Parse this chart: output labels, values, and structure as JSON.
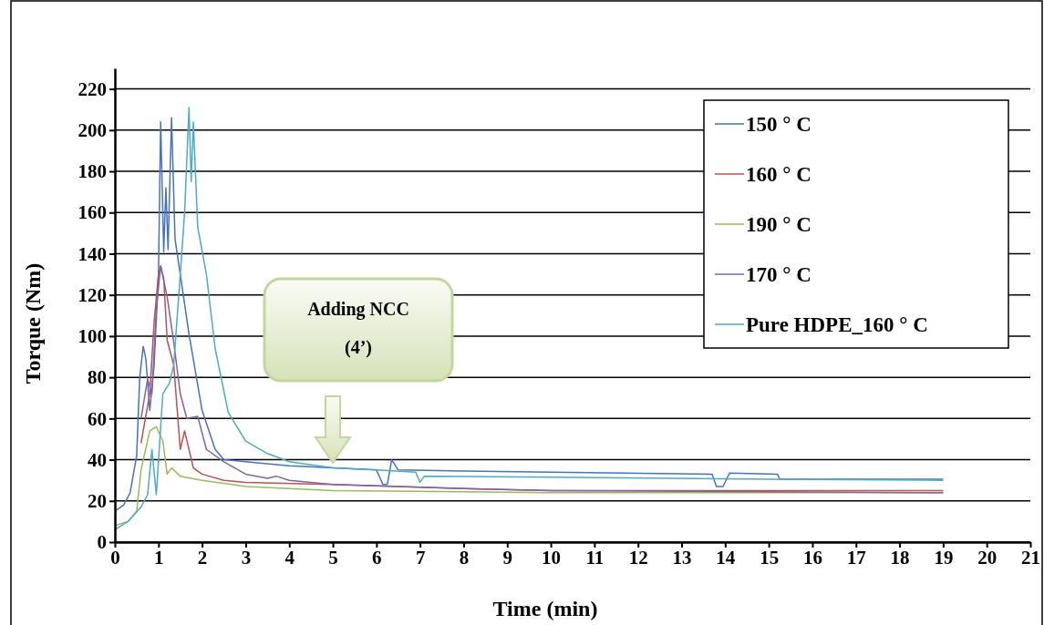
{
  "chart_data": {
    "type": "line",
    "xlabel": "Time (min)",
    "ylabel": "Torque (Nm)",
    "xlim": [
      0,
      21
    ],
    "xticks": [
      0,
      1,
      2,
      3,
      4,
      5,
      6,
      7,
      8,
      9,
      10,
      11,
      12,
      13,
      14,
      15,
      16,
      17,
      18,
      19,
      20,
      21
    ],
    "ylim": [
      0,
      230
    ],
    "yticks": [
      0,
      20,
      40,
      60,
      80,
      100,
      120,
      140,
      160,
      180,
      200,
      220
    ],
    "grid": "y",
    "legend": "top right",
    "marker": "none",
    "line_style": "solid",
    "annotations": [
      "Adding NCC\n(4’)"
    ],
    "series": [
      {
        "name": "150 ° C",
        "color": "#4472c4",
        "x": [
          0,
          0.2,
          0.35,
          0.5,
          0.57,
          0.65,
          0.71,
          0.8,
          0.9,
          1.0,
          1.05,
          1.12,
          1.17,
          1.22,
          1.3,
          1.38,
          1.5,
          1.7,
          2.0,
          2.3,
          2.5,
          3,
          4,
          5,
          6,
          6.15,
          6.25,
          6.35,
          6.5,
          8,
          10,
          13.7,
          13.8,
          13.95,
          14.1,
          15.2,
          15.25,
          19
        ],
        "values": [
          15,
          18,
          24,
          42,
          80,
          95,
          89,
          64,
          86,
          130,
          204,
          141,
          172,
          142,
          206,
          147,
          130,
          101,
          64,
          45,
          40,
          39,
          37,
          36,
          35,
          28,
          28,
          40,
          35,
          34.5,
          34,
          33,
          27,
          27,
          33.5,
          33,
          30.5,
          30.5
        ]
      },
      {
        "name": "160 ° C",
        "color": "#c0504d",
        "x": [
          0.6,
          0.8,
          0.9,
          1.0,
          1.05,
          1.12,
          1.2,
          1.35,
          1.5,
          1.6,
          1.8,
          2.0,
          2.5,
          3,
          5,
          8,
          10,
          19
        ],
        "values": [
          48,
          72,
          107,
          130,
          134,
          128,
          98,
          86,
          45,
          54,
          36,
          33,
          30,
          29,
          28,
          26,
          25,
          25
        ]
      },
      {
        "name": "190 ° C",
        "color": "#9bbb59",
        "x": [
          0,
          0.3,
          0.5,
          0.6,
          0.8,
          0.95,
          1.1,
          1.2,
          1.3,
          1.5,
          2,
          3,
          5,
          10,
          19
        ],
        "values": [
          8,
          10,
          15,
          35,
          54,
          56,
          49,
          33,
          36,
          32,
          30,
          27,
          25,
          24,
          24
        ]
      },
      {
        "name": "170 ° C",
        "color": "#8064a2",
        "x": [
          0.6,
          0.75,
          0.85,
          0.95,
          1.05,
          1.2,
          1.35,
          1.5,
          1.65,
          1.9,
          2.1,
          2.5,
          3,
          3.5,
          3.7,
          4,
          5,
          8,
          10,
          19
        ],
        "values": [
          60,
          79,
          72,
          113,
          134,
          119,
          97,
          72,
          60,
          61,
          45,
          39,
          33,
          31,
          32,
          30,
          28,
          26,
          25,
          24
        ]
      },
      {
        "name": "Pure HDPE_160 ° C",
        "color": "#4bacc6",
        "x": [
          0,
          0.3,
          0.6,
          0.75,
          0.85,
          0.95,
          1.1,
          1.25,
          1.35,
          1.5,
          1.6,
          1.7,
          1.75,
          1.8,
          1.9,
          2.1,
          2.3,
          2.6,
          3,
          3.5,
          4,
          5,
          6,
          6.9,
          7.0,
          7.1,
          10,
          15,
          19
        ],
        "values": [
          6,
          10,
          17,
          23,
          45,
          23,
          72,
          77,
          86,
          130,
          160,
          211,
          175,
          204,
          153,
          130,
          94,
          63,
          49,
          43,
          39,
          36,
          35,
          34,
          29,
          32,
          31.5,
          30.5,
          30
        ]
      }
    ]
  }
}
